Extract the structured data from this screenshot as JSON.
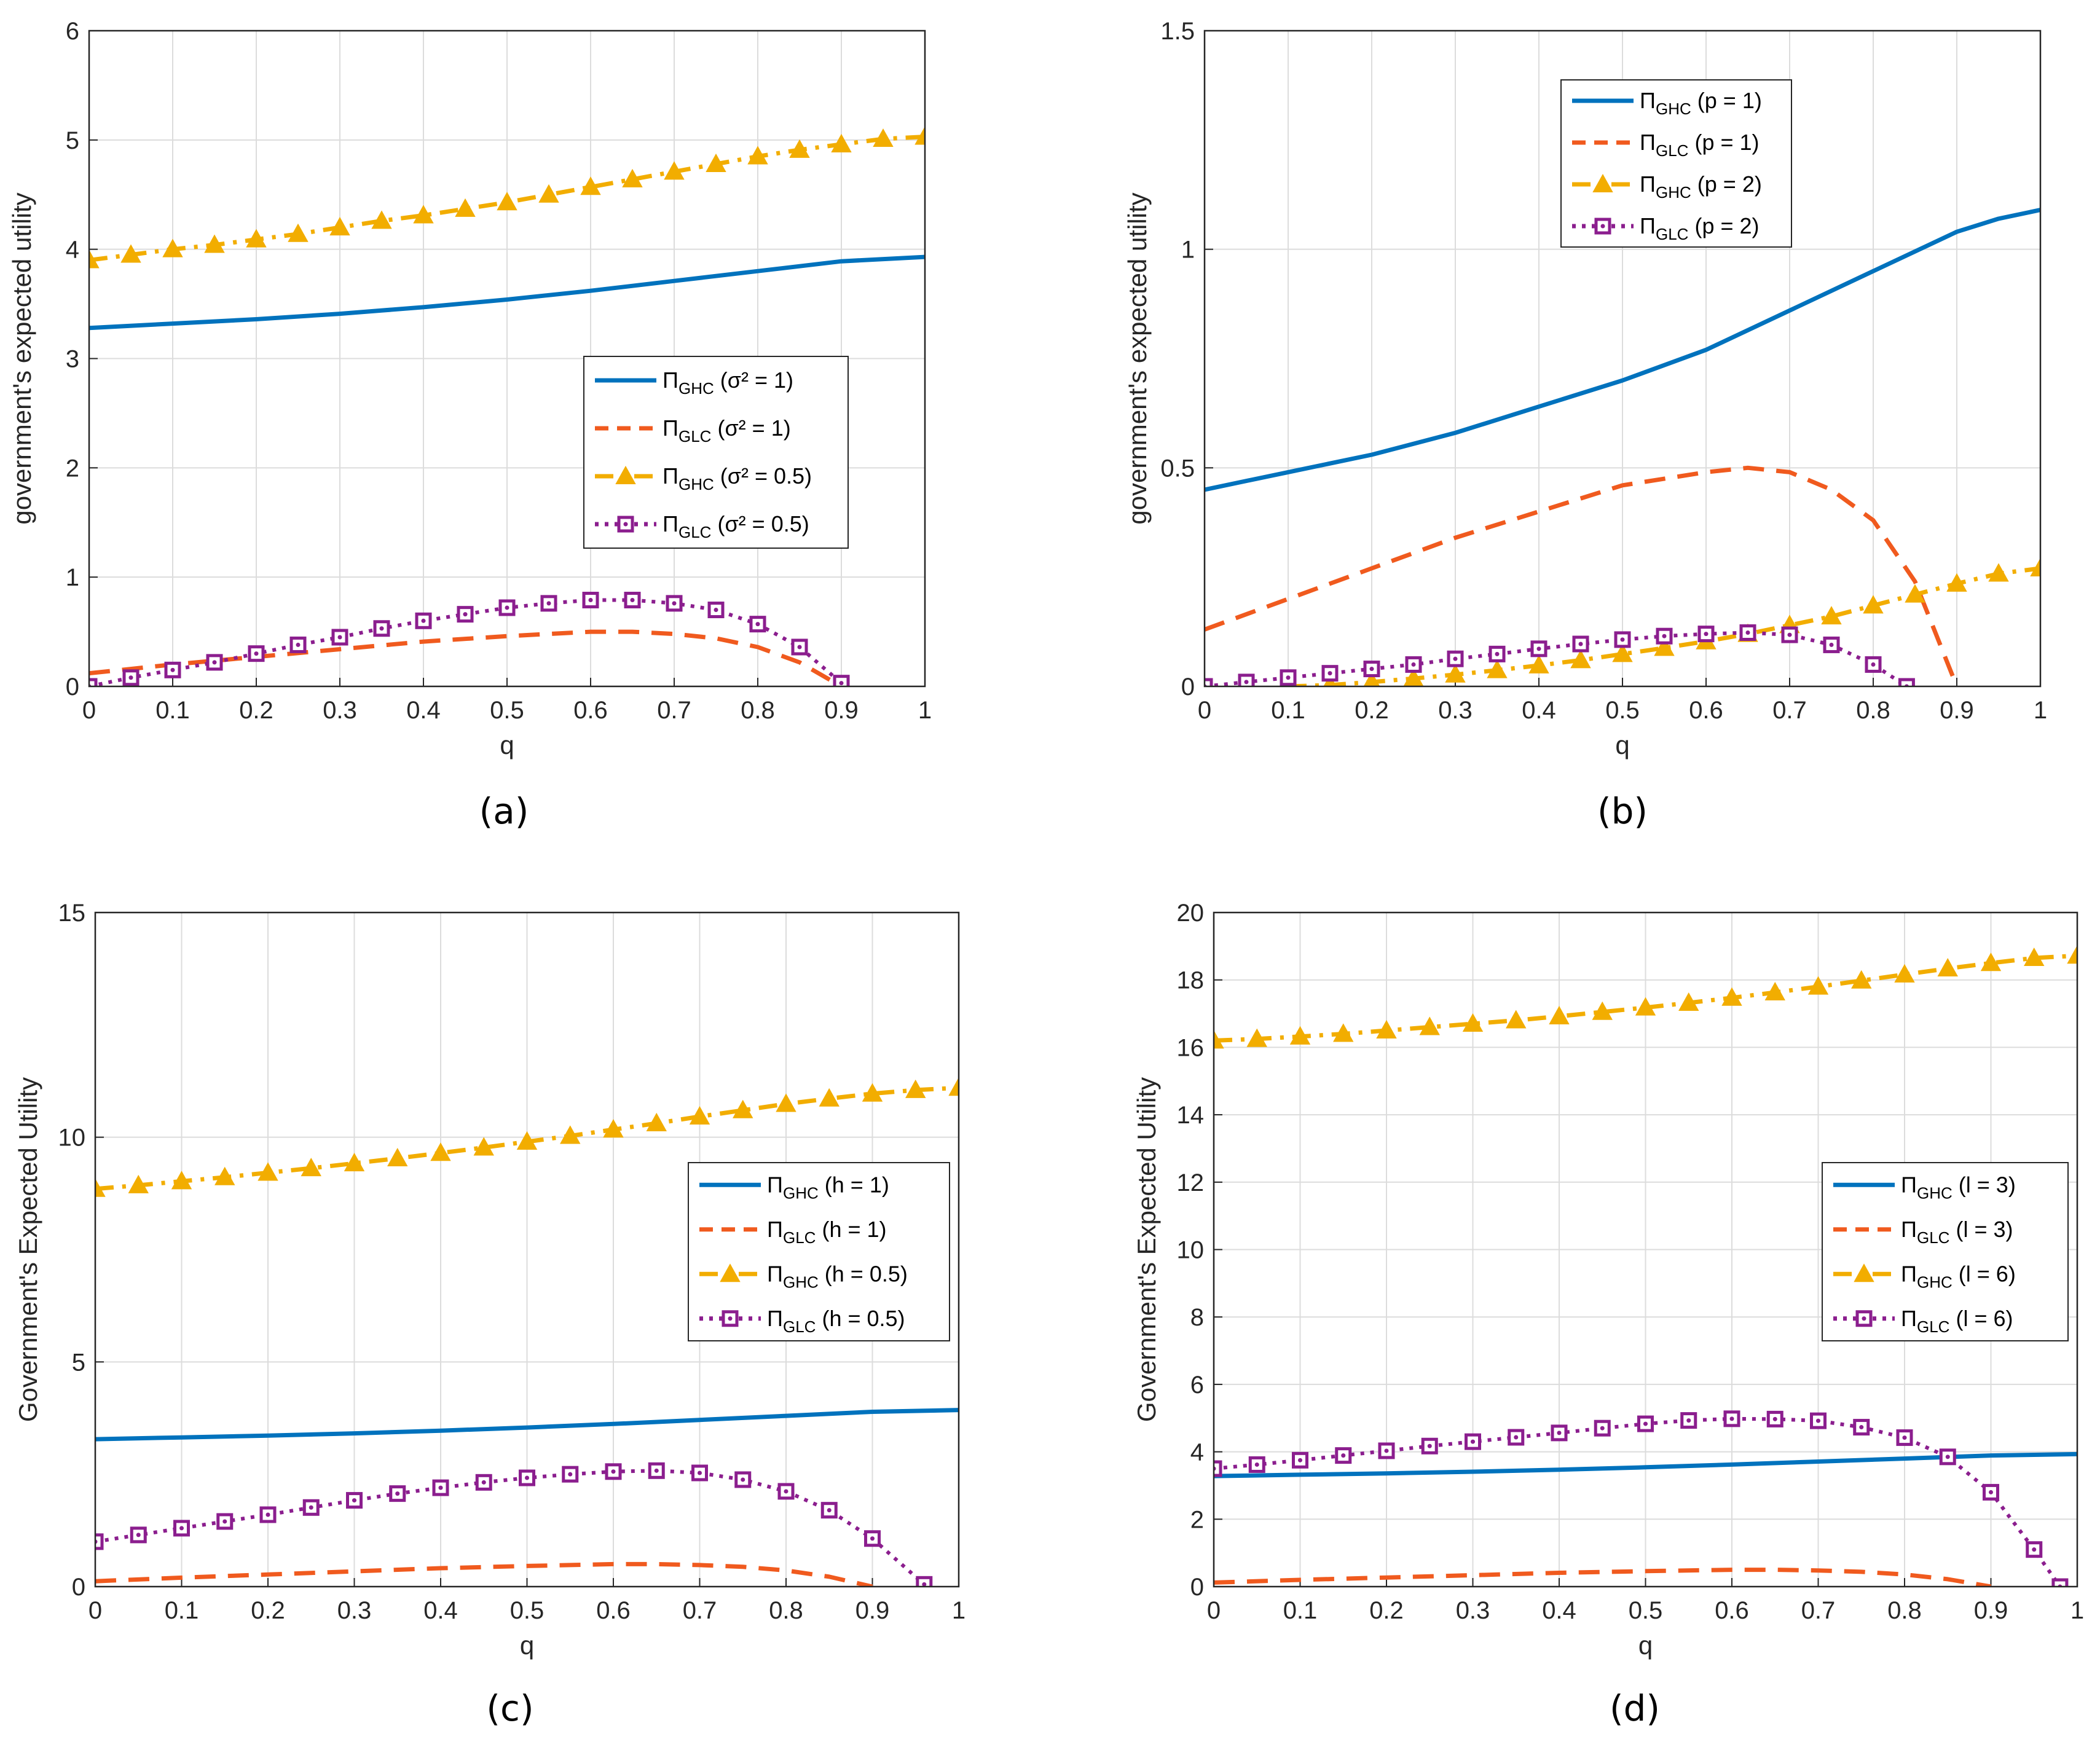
{
  "colors": {
    "ghc1": "#0072BD",
    "glc1": "#F05A1E",
    "ghc2": "#F2AD00",
    "glc2": "#8B1E8E",
    "grid": "#dcdcdc",
    "axis": "#262626"
  },
  "chart_data": [
    {
      "type": "line",
      "panel_label": "(a)",
      "xlabel": "q",
      "ylabel": "government's expected utility",
      "xlim": [
        0,
        1
      ],
      "ylim": [
        0,
        6
      ],
      "xticks": [
        "0",
        "0.1",
        "0.2",
        "0.3",
        "0.4",
        "0.5",
        "0.6",
        "0.7",
        "0.8",
        "0.9",
        "1"
      ],
      "yticks": [
        "0",
        "1",
        "2",
        "3",
        "4",
        "5",
        "6"
      ],
      "legend_position": "middle-right",
      "series": [
        {
          "name": "Π_GHC (σ² = 1)",
          "sym": "Π",
          "sub": "GHC",
          "param": "(σ² = 1)",
          "style": "solid",
          "color_key": "ghc1",
          "marker": "none",
          "x": [
            0,
            0.1,
            0.2,
            0.3,
            0.4,
            0.5,
            0.6,
            0.7,
            0.8,
            0.9,
            1
          ],
          "y": [
            3.28,
            3.32,
            3.36,
            3.41,
            3.47,
            3.54,
            3.62,
            3.71,
            3.8,
            3.89,
            3.93
          ]
        },
        {
          "name": "Π_GLC (σ² = 1)",
          "sym": "Π",
          "sub": "GLC",
          "param": "(σ² = 1)",
          "style": "dashed",
          "color_key": "glc1",
          "marker": "none",
          "x": [
            0,
            0.1,
            0.2,
            0.3,
            0.4,
            0.5,
            0.6,
            0.65,
            0.7,
            0.75,
            0.8,
            0.85,
            0.9
          ],
          "y": [
            0.12,
            0.2,
            0.27,
            0.34,
            0.41,
            0.46,
            0.5,
            0.5,
            0.48,
            0.44,
            0.36,
            0.22,
            0.0
          ]
        },
        {
          "name": "Π_GHC (σ² = 0.5)",
          "sym": "Π",
          "sub": "GHC",
          "param": "(σ² = 0.5)",
          "style": "dashdot",
          "color_key": "ghc2",
          "marker": "triangle",
          "x": [
            0,
            0.05,
            0.1,
            0.15,
            0.2,
            0.25,
            0.3,
            0.35,
            0.4,
            0.45,
            0.5,
            0.55,
            0.6,
            0.65,
            0.7,
            0.75,
            0.8,
            0.85,
            0.9,
            0.95,
            1
          ],
          "y": [
            3.9,
            3.95,
            4.0,
            4.04,
            4.09,
            4.14,
            4.2,
            4.26,
            4.31,
            4.37,
            4.43,
            4.5,
            4.57,
            4.64,
            4.71,
            4.78,
            4.85,
            4.91,
            4.96,
            5.01,
            5.03
          ]
        },
        {
          "name": "Π_GLC (σ² = 0.5)",
          "sym": "Π",
          "sub": "GLC",
          "param": "(σ² = 0.5)",
          "style": "dotted",
          "color_key": "glc2",
          "marker": "square",
          "x": [
            0,
            0.05,
            0.1,
            0.15,
            0.2,
            0.25,
            0.3,
            0.35,
            0.4,
            0.45,
            0.5,
            0.55,
            0.6,
            0.65,
            0.7,
            0.75,
            0.8,
            0.85,
            0.9
          ],
          "y": [
            0.0,
            0.08,
            0.15,
            0.22,
            0.3,
            0.38,
            0.45,
            0.53,
            0.6,
            0.66,
            0.72,
            0.76,
            0.79,
            0.79,
            0.76,
            0.7,
            0.57,
            0.36,
            0.03
          ]
        }
      ]
    },
    {
      "type": "line",
      "panel_label": "(b)",
      "xlabel": "q",
      "ylabel": "government's expected utility",
      "xlim": [
        0,
        1
      ],
      "ylim": [
        0,
        1.5
      ],
      "xticks": [
        "0",
        "0.1",
        "0.2",
        "0.3",
        "0.4",
        "0.5",
        "0.6",
        "0.7",
        "0.8",
        "0.9",
        "1"
      ],
      "yticks": [
        "0",
        "0.5",
        "1",
        "1.5"
      ],
      "legend_position": "top",
      "series": [
        {
          "name": "Π_GHC (p = 1)",
          "sym": "Π",
          "sub": "GHC",
          "param": "(p = 1)",
          "style": "solid",
          "color_key": "ghc1",
          "marker": "none",
          "x": [
            0,
            0.1,
            0.2,
            0.3,
            0.4,
            0.5,
            0.6,
            0.7,
            0.8,
            0.9,
            0.95,
            1
          ],
          "y": [
            0.45,
            0.49,
            0.53,
            0.58,
            0.64,
            0.7,
            0.77,
            0.86,
            0.95,
            1.04,
            1.07,
            1.09
          ]
        },
        {
          "name": "Π_GLC (p = 1)",
          "sym": "Π",
          "sub": "GLC",
          "param": "(p = 1)",
          "style": "dashed",
          "color_key": "glc1",
          "marker": "none",
          "x": [
            0,
            0.1,
            0.2,
            0.3,
            0.4,
            0.5,
            0.6,
            0.65,
            0.7,
            0.75,
            0.8,
            0.85,
            0.9
          ],
          "y": [
            0.13,
            0.2,
            0.27,
            0.34,
            0.4,
            0.46,
            0.49,
            0.5,
            0.49,
            0.45,
            0.38,
            0.24,
            0.0
          ]
        },
        {
          "name": "Π_GHC (p = 2)",
          "sym": "Π",
          "sub": "GHC",
          "param": "(p = 2)",
          "style": "dashdot",
          "color_key": "ghc2",
          "marker": "triangle",
          "x": [
            0.1,
            0.15,
            0.2,
            0.25,
            0.3,
            0.35,
            0.4,
            0.45,
            0.5,
            0.55,
            0.6,
            0.65,
            0.7,
            0.75,
            0.8,
            0.85,
            0.9,
            0.95,
            1
          ],
          "y": [
            0.0,
            0.003,
            0.01,
            0.018,
            0.027,
            0.037,
            0.048,
            0.06,
            0.074,
            0.088,
            0.103,
            0.12,
            0.14,
            0.16,
            0.185,
            0.21,
            0.235,
            0.258,
            0.27
          ]
        },
        {
          "name": "Π_GLC (p = 2)",
          "sym": "Π",
          "sub": "GLC",
          "param": "(p = 2)",
          "style": "dotted",
          "color_key": "glc2",
          "marker": "square",
          "x": [
            0,
            0.05,
            0.1,
            0.15,
            0.2,
            0.25,
            0.3,
            0.35,
            0.4,
            0.45,
            0.5,
            0.55,
            0.6,
            0.65,
            0.7,
            0.75,
            0.8,
            0.84
          ],
          "y": [
            0.0,
            0.01,
            0.02,
            0.03,
            0.04,
            0.05,
            0.063,
            0.074,
            0.086,
            0.097,
            0.107,
            0.115,
            0.12,
            0.123,
            0.118,
            0.095,
            0.05,
            0.0
          ]
        }
      ]
    },
    {
      "type": "line",
      "panel_label": "(c)",
      "xlabel": "q",
      "ylabel": "Government's Expected Utility",
      "xlim": [
        0,
        1
      ],
      "ylim": [
        0,
        15
      ],
      "xticks": [
        "0",
        "0.1",
        "0.2",
        "0.3",
        "0.4",
        "0.5",
        "0.6",
        "0.7",
        "0.8",
        "0.9",
        "1"
      ],
      "yticks": [
        "0",
        "5",
        "10",
        "15"
      ],
      "legend_position": "middle-right",
      "series": [
        {
          "name": "Π_GHC (h = 1)",
          "sym": "Π",
          "sub": "GHC",
          "param": "(h = 1)",
          "style": "solid",
          "color_key": "ghc1",
          "marker": "none",
          "x": [
            0,
            0.1,
            0.2,
            0.3,
            0.4,
            0.5,
            0.6,
            0.7,
            0.8,
            0.9,
            1
          ],
          "y": [
            3.28,
            3.32,
            3.36,
            3.41,
            3.47,
            3.54,
            3.62,
            3.71,
            3.8,
            3.89,
            3.93
          ]
        },
        {
          "name": "Π_GLC (h = 1)",
          "sym": "Π",
          "sub": "GLC",
          "param": "(h = 1)",
          "style": "dashed",
          "color_key": "glc1",
          "marker": "none",
          "x": [
            0,
            0.1,
            0.2,
            0.3,
            0.4,
            0.5,
            0.6,
            0.65,
            0.7,
            0.75,
            0.8,
            0.85,
            0.9
          ],
          "y": [
            0.12,
            0.2,
            0.27,
            0.34,
            0.41,
            0.46,
            0.5,
            0.5,
            0.48,
            0.44,
            0.36,
            0.22,
            0.0
          ]
        },
        {
          "name": "Π_GHC (h = 0.5)",
          "sym": "Π",
          "sub": "GHC",
          "param": "(h = 0.5)",
          "style": "dashdot",
          "color_key": "ghc2",
          "marker": "triangle",
          "x": [
            0,
            0.05,
            0.1,
            0.15,
            0.2,
            0.25,
            0.3,
            0.35,
            0.4,
            0.45,
            0.5,
            0.55,
            0.6,
            0.65,
            0.7,
            0.75,
            0.8,
            0.85,
            0.9,
            0.95,
            1
          ],
          "y": [
            8.85,
            8.93,
            9.02,
            9.11,
            9.21,
            9.31,
            9.42,
            9.53,
            9.65,
            9.77,
            9.9,
            10.03,
            10.17,
            10.31,
            10.46,
            10.6,
            10.74,
            10.86,
            10.97,
            11.05,
            11.1
          ]
        },
        {
          "name": "Π_GLC (h = 0.5)",
          "sym": "Π",
          "sub": "GLC",
          "param": "(h = 0.5)",
          "style": "dotted",
          "color_key": "glc2",
          "marker": "square",
          "x": [
            0,
            0.05,
            0.1,
            0.15,
            0.2,
            0.25,
            0.3,
            0.35,
            0.4,
            0.45,
            0.5,
            0.55,
            0.6,
            0.65,
            0.7,
            0.75,
            0.8,
            0.85,
            0.9,
            0.96
          ],
          "y": [
            1.0,
            1.15,
            1.3,
            1.45,
            1.6,
            1.76,
            1.92,
            2.07,
            2.2,
            2.32,
            2.42,
            2.5,
            2.56,
            2.58,
            2.53,
            2.38,
            2.12,
            1.7,
            1.07,
            0.05
          ]
        }
      ]
    },
    {
      "type": "line",
      "panel_label": "(d)",
      "xlabel": "q",
      "ylabel": "Government's Expected Utility",
      "xlim": [
        0,
        1
      ],
      "ylim": [
        0,
        20
      ],
      "xticks": [
        "0",
        "0.1",
        "0.2",
        "0.3",
        "0.4",
        "0.5",
        "0.6",
        "0.7",
        "0.8",
        "0.9",
        "1"
      ],
      "yticks": [
        "0",
        "2",
        "4",
        "6",
        "8",
        "10",
        "12",
        "14",
        "16",
        "18",
        "20"
      ],
      "legend_position": "middle-right",
      "series": [
        {
          "name": "Π_GHC (l = 3)",
          "sym": "Π",
          "sub": "GHC",
          "param": "(l = 3)",
          "style": "solid",
          "color_key": "ghc1",
          "marker": "none",
          "x": [
            0,
            0.1,
            0.2,
            0.3,
            0.4,
            0.5,
            0.6,
            0.7,
            0.8,
            0.9,
            1
          ],
          "y": [
            3.28,
            3.32,
            3.36,
            3.41,
            3.47,
            3.54,
            3.62,
            3.71,
            3.8,
            3.89,
            3.93
          ]
        },
        {
          "name": "Π_GLC (l = 3)",
          "sym": "Π",
          "sub": "GLC",
          "param": "(l = 3)",
          "style": "dashed",
          "color_key": "glc1",
          "marker": "none",
          "x": [
            0,
            0.1,
            0.2,
            0.3,
            0.4,
            0.5,
            0.6,
            0.65,
            0.7,
            0.75,
            0.8,
            0.85,
            0.9
          ],
          "y": [
            0.12,
            0.2,
            0.27,
            0.34,
            0.41,
            0.46,
            0.5,
            0.5,
            0.48,
            0.44,
            0.36,
            0.22,
            0.0
          ]
        },
        {
          "name": "Π_GHC (l = 6)",
          "sym": "Π",
          "sub": "GHC",
          "param": "(l = 6)",
          "style": "dashdot",
          "color_key": "ghc2",
          "marker": "triangle",
          "x": [
            0,
            0.05,
            0.1,
            0.15,
            0.2,
            0.25,
            0.3,
            0.35,
            0.4,
            0.45,
            0.5,
            0.55,
            0.6,
            0.65,
            0.7,
            0.75,
            0.8,
            0.85,
            0.9,
            0.95,
            1
          ],
          "y": [
            16.2,
            16.25,
            16.32,
            16.4,
            16.5,
            16.6,
            16.7,
            16.8,
            16.92,
            17.05,
            17.18,
            17.32,
            17.47,
            17.63,
            17.8,
            17.98,
            18.16,
            18.34,
            18.5,
            18.65,
            18.72
          ]
        },
        {
          "name": "Π_GLC (l = 6)",
          "sym": "Π",
          "sub": "GLC",
          "param": "(l = 6)",
          "style": "dotted",
          "color_key": "glc2",
          "marker": "square",
          "x": [
            0,
            0.05,
            0.1,
            0.15,
            0.2,
            0.25,
            0.3,
            0.35,
            0.4,
            0.45,
            0.5,
            0.55,
            0.6,
            0.65,
            0.7,
            0.75,
            0.8,
            0.85,
            0.9,
            0.95,
            0.98
          ],
          "y": [
            3.5,
            3.62,
            3.75,
            3.89,
            4.03,
            4.17,
            4.3,
            4.43,
            4.56,
            4.7,
            4.83,
            4.93,
            4.98,
            4.97,
            4.92,
            4.73,
            4.42,
            3.85,
            2.8,
            1.1,
            0.0
          ]
        }
      ]
    }
  ]
}
